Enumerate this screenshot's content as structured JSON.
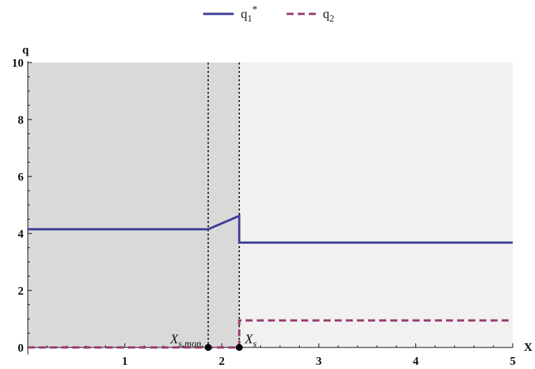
{
  "chart_data": {
    "type": "line",
    "xlabel": "X",
    "ylabel": "q",
    "xlim": [
      0,
      5
    ],
    "ylim": [
      0,
      10
    ],
    "xticks": [
      "1",
      "2",
      "3",
      "4",
      "5"
    ],
    "yticks": [
      "0",
      "2",
      "4",
      "6",
      "8",
      "10"
    ],
    "legend_position": "top-center",
    "series": [
      {
        "name": "q₁*",
        "name_base": "q",
        "name_sub": "1",
        "name_sup": "*",
        "style": "solid",
        "color": "#3f3f99",
        "points": [
          [
            0,
            4.15
          ],
          [
            1.86,
            4.15
          ],
          [
            2.18,
            4.62
          ],
          [
            2.18,
            3.68
          ],
          [
            5,
            3.68
          ]
        ]
      },
      {
        "name": "q₂",
        "name_base": "q",
        "name_sub": "2",
        "style": "dashed",
        "color": "#9b3a6e",
        "points": [
          [
            0,
            0
          ],
          [
            2.18,
            0
          ],
          [
            2.18,
            0.95
          ],
          [
            5,
            0.95
          ]
        ]
      }
    ],
    "shaded_regions": [
      {
        "from": 0,
        "to": 2.18,
        "color": "#d9d9d9"
      },
      {
        "from": 2.18,
        "to": 5,
        "color": "#f1f1f1"
      }
    ],
    "vertical_lines": [
      {
        "x": 1.86,
        "label_base": "X",
        "label_sub": "s,mon"
      },
      {
        "x": 2.18,
        "label_base": "X",
        "label_sub": "s"
      }
    ]
  }
}
